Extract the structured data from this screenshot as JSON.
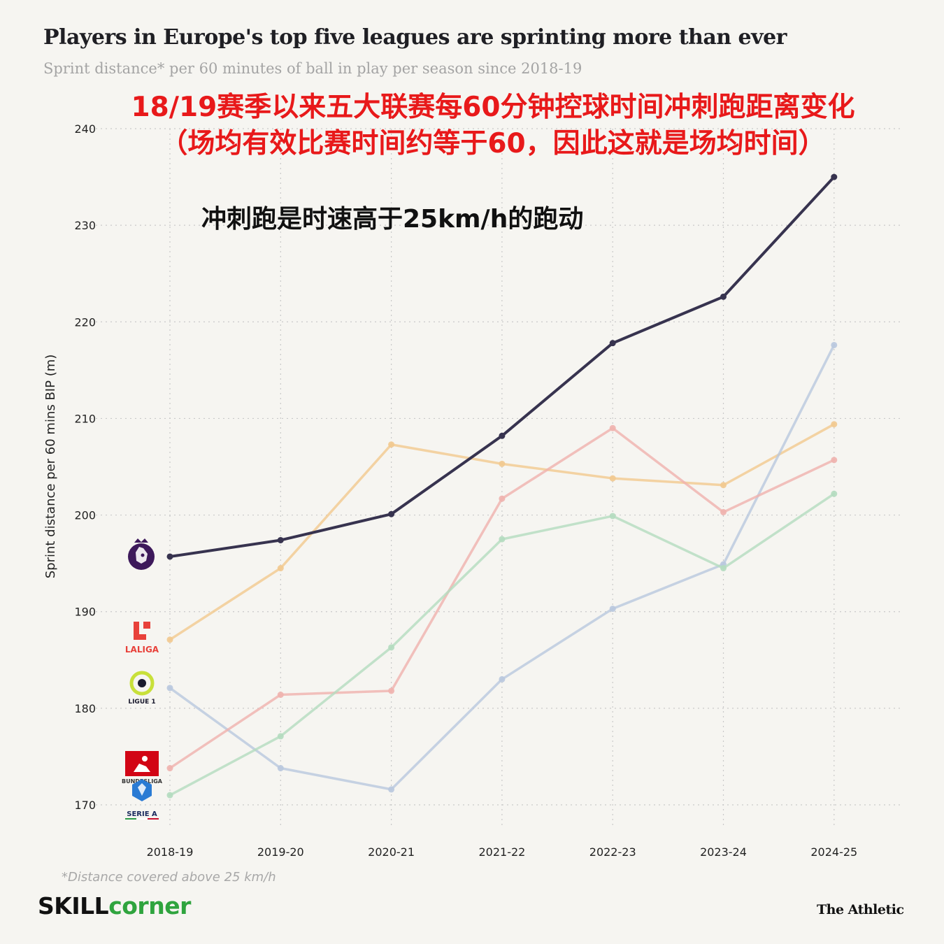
{
  "title": "Players in Europe's top five leagues are sprinting more than ever",
  "subtitle": "Sprint distance* per 60 minutes of ball in play per season since 2018-19",
  "annotation_cn_line1": "18/19赛季以来五大联赛每60分钟控球时间冲刺跑距离变化",
  "annotation_cn_line2": "（场均有效比赛时间约等于60，因此这就是场均时间）",
  "annotation_cn_note": "冲刺跑是时速高于25km/h的跑动",
  "footnote": "*Distance covered above 25 km/h",
  "brand_left_a": "SKILL",
  "brand_left_b": "corner",
  "brand_right": "The Athletic",
  "logos": {
    "laliga": "LALIGA",
    "ligue1": "LIGUE 1",
    "bundesliga": "BUNDESLIGA",
    "seriea": "SERIE A"
  },
  "chart_data": {
    "type": "line",
    "title": "Players in Europe's top five leagues are sprinting more than ever",
    "xlabel": "",
    "ylabel": "Sprint distance per 60 mins BIP (m)",
    "categories": [
      "2018-19",
      "2019-20",
      "2020-21",
      "2021-22",
      "2022-23",
      "2023-24",
      "2024-25"
    ],
    "ylim": [
      170,
      240
    ],
    "yticks": [
      170,
      180,
      190,
      200,
      210,
      220,
      230,
      240
    ],
    "grid": true,
    "series": [
      {
        "name": "Premier League",
        "color": "#37334f",
        "values": [
          195.7,
          197.4,
          200.1,
          208.2,
          217.8,
          222.6,
          235.0
        ]
      },
      {
        "name": "LaLiga",
        "color": "#f2c98f",
        "values": [
          187.1,
          194.5,
          207.3,
          205.3,
          203.8,
          203.1,
          209.4
        ]
      },
      {
        "name": "Ligue 1",
        "color": "#b9c8de",
        "values": [
          182.1,
          173.8,
          171.6,
          183.0,
          190.3,
          194.9,
          217.6
        ]
      },
      {
        "name": "Bundesliga",
        "color": "#f0b2ae",
        "values": [
          173.8,
          181.4,
          181.8,
          201.7,
          209.0,
          200.3,
          205.7
        ]
      },
      {
        "name": "Serie A",
        "color": "#b4dcbf",
        "values": [
          171.0,
          177.1,
          186.3,
          197.5,
          199.9,
          194.5,
          202.2
        ]
      }
    ]
  }
}
